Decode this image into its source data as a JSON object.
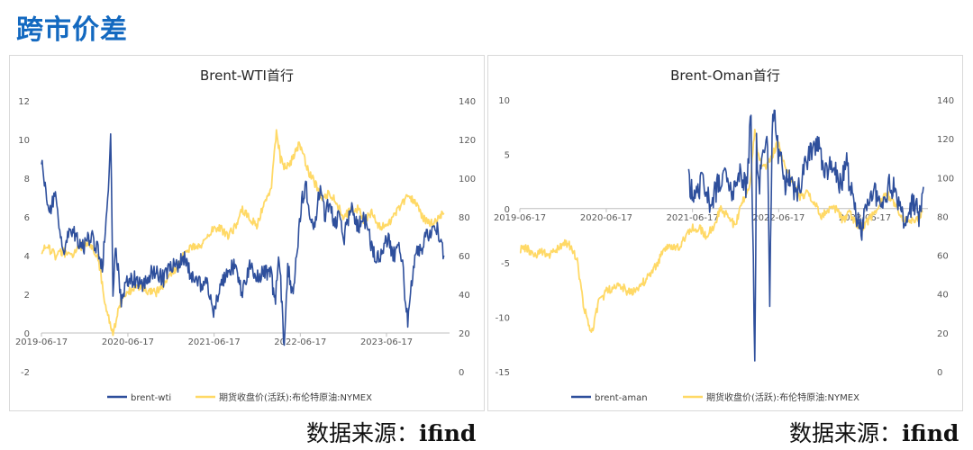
{
  "page_title": "跨市价差",
  "source_left": {
    "label": "数据来源：",
    "value": "ifind"
  },
  "source_right": {
    "label": "数据来源：",
    "value": "ifind"
  },
  "colors": {
    "spread_line": "#2e4f9c",
    "price_line": "#ffd966",
    "title": "#1369c0"
  },
  "chart_data": [
    {
      "type": "line",
      "title": "Brent-WTI首行",
      "xlabel": "",
      "ylabel": "",
      "x_ticks": [
        "2019-06-17",
        "2020-06-17",
        "2021-06-17",
        "2022-06-17",
        "2023-06-17"
      ],
      "y_left": {
        "ticks": [
          "-2",
          "0",
          "2",
          "4",
          "6",
          "8",
          "10",
          "12"
        ],
        "lim": [
          -2,
          12
        ]
      },
      "y_right": {
        "ticks": [
          "0",
          "20",
          "40",
          "60",
          "80",
          "100",
          "120",
          "140"
        ],
        "lim": [
          0,
          140
        ]
      },
      "legend_position": "bottom",
      "series": [
        {
          "name": "brent-wti",
          "axis": "left",
          "x": [
            "2019-06-17",
            "2019-07-15",
            "2019-08-15",
            "2019-09-15",
            "2019-10-15",
            "2019-11-15",
            "2019-12-15",
            "2020-01-15",
            "2020-02-15",
            "2020-03-01",
            "2020-03-20",
            "2020-04-05",
            "2020-04-15",
            "2020-04-25",
            "2020-05-10",
            "2020-05-20",
            "2020-06-10",
            "2020-07-15",
            "2020-08-15",
            "2020-09-15",
            "2020-10-15",
            "2020-11-15",
            "2020-12-15",
            "2021-01-15",
            "2021-02-15",
            "2021-03-15",
            "2021-04-15",
            "2021-05-15",
            "2021-06-15",
            "2021-07-15",
            "2021-08-15",
            "2021-09-15",
            "2021-10-15",
            "2021-11-15",
            "2021-12-15",
            "2022-01-15",
            "2022-02-15",
            "2022-03-01",
            "2022-03-20",
            "2022-04-10",
            "2022-04-25",
            "2022-05-15",
            "2022-06-01",
            "2022-06-20",
            "2022-07-10",
            "2022-07-25",
            "2022-08-15",
            "2022-09-10",
            "2022-10-01",
            "2022-10-20",
            "2022-11-10",
            "2022-12-01",
            "2022-12-20",
            "2023-01-15",
            "2023-02-15",
            "2023-03-15",
            "2023-04-15",
            "2023-05-01",
            "2023-05-15",
            "2023-05-25",
            "2023-06-10",
            "2023-06-25",
            "2023-07-15",
            "2023-08-15",
            "2023-09-15",
            "2023-10-15",
            "2023-11-15",
            "2023-12-15",
            "2024-01-15",
            "2024-02-15"
          ],
          "values": [
            9.0,
            6.3,
            7.0,
            4.0,
            5.5,
            4.8,
            4.5,
            5.0,
            4.2,
            3.5,
            6.0,
            10.2,
            2.0,
            4.5,
            3.0,
            1.5,
            2.5,
            2.8,
            2.5,
            3.0,
            3.2,
            2.8,
            3.5,
            3.6,
            3.8,
            2.8,
            2.5,
            2.6,
            1.0,
            2.5,
            3.2,
            3.5,
            2.0,
            3.5,
            2.8,
            3.3,
            3.0,
            1.5,
            4.0,
            -0.8,
            3.5,
            2.0,
            4.0,
            6.5,
            7.8,
            6.0,
            5.5,
            7.5,
            6.0,
            7.0,
            5.5,
            6.2,
            5.0,
            6.5,
            5.5,
            6.0,
            4.5,
            3.8,
            4.0,
            4.2,
            4.5,
            5.0,
            4.0,
            4.5,
            0.6,
            4.0,
            4.5,
            5.2,
            5.5,
            4.0
          ]
        },
        {
          "name": "期货收盘价(活跃):布伦特原油:NYMEX",
          "axis": "right",
          "x": [
            "2019-06-17",
            "2019-07-15",
            "2019-08-15",
            "2019-09-15",
            "2019-10-15",
            "2019-11-15",
            "2019-12-15",
            "2020-01-15",
            "2020-02-15",
            "2020-03-15",
            "2020-04-15",
            "2020-04-25",
            "2020-05-15",
            "2020-06-15",
            "2020-07-15",
            "2020-08-15",
            "2020-09-15",
            "2020-10-15",
            "2020-11-15",
            "2020-12-15",
            "2021-01-15",
            "2021-02-15",
            "2021-03-15",
            "2021-04-15",
            "2021-05-15",
            "2021-06-15",
            "2021-07-15",
            "2021-08-15",
            "2021-09-15",
            "2021-10-15",
            "2021-11-15",
            "2021-12-15",
            "2022-01-15",
            "2022-02-15",
            "2022-03-08",
            "2022-03-25",
            "2022-04-15",
            "2022-05-15",
            "2022-06-15",
            "2022-07-15",
            "2022-08-15",
            "2022-09-15",
            "2022-10-15",
            "2022-11-15",
            "2022-12-15",
            "2023-01-15",
            "2023-02-15",
            "2023-03-15",
            "2023-04-15",
            "2023-05-15",
            "2023-06-15",
            "2023-07-15",
            "2023-08-15",
            "2023-09-15",
            "2023-10-15",
            "2023-11-15",
            "2023-12-15",
            "2024-01-15",
            "2024-02-15"
          ],
          "values": [
            63,
            64,
            60,
            62,
            60,
            63,
            66,
            65,
            57,
            33,
            20,
            25,
            35,
            41,
            43,
            45,
            41,
            41,
            45,
            50,
            55,
            62,
            65,
            64,
            68,
            74,
            74,
            70,
            75,
            84,
            80,
            75,
            88,
            95,
            125,
            110,
            105,
            110,
            118,
            105,
            98,
            90,
            92,
            88,
            80,
            83,
            84,
            78,
            82,
            75,
            75,
            80,
            85,
            92,
            88,
            80,
            77,
            78,
            82
          ]
        }
      ]
    },
    {
      "type": "line",
      "title": "Brent-Oman首行",
      "xlabel": "",
      "ylabel": "",
      "x_ticks": [
        "2019-06-17",
        "2020-06-17",
        "2021-06-17",
        "2022-06-17",
        "2023-06-17"
      ],
      "y_left": {
        "ticks": [
          "-15",
          "-10",
          "-5",
          "0",
          "5",
          "10"
        ],
        "lim": [
          -15,
          10
        ]
      },
      "y_right": {
        "ticks": [
          "0",
          "20",
          "40",
          "60",
          "80",
          "100",
          "120",
          "140"
        ],
        "lim": [
          0,
          140
        ]
      },
      "legend_position": "bottom",
      "series": [
        {
          "name": "brent-aman",
          "axis": "left",
          "x": [
            "2021-06-01",
            "2021-07-01",
            "2021-08-01",
            "2021-09-01",
            "2021-10-01",
            "2021-11-01",
            "2021-12-01",
            "2022-01-01",
            "2022-02-01",
            "2022-02-20",
            "2022-03-08",
            "2022-03-15",
            "2022-03-25",
            "2022-04-15",
            "2022-05-01",
            "2022-05-10",
            "2022-05-20",
            "2022-06-01",
            "2022-06-15",
            "2022-07-01",
            "2022-07-15",
            "2022-08-01",
            "2022-08-15",
            "2022-09-01",
            "2022-10-01",
            "2022-11-01",
            "2022-12-01",
            "2023-01-01",
            "2023-02-01",
            "2023-03-01",
            "2023-04-01",
            "2023-05-01",
            "2023-06-01",
            "2023-07-01",
            "2023-08-01",
            "2023-09-01",
            "2023-10-01",
            "2023-11-01",
            "2023-12-01",
            "2024-01-01",
            "2024-02-01",
            "2024-02-20"
          ],
          "values": [
            2.5,
            1.0,
            3.0,
            0.5,
            2.0,
            3.0,
            1.5,
            3.5,
            2.0,
            8.5,
            -15.0,
            6.0,
            2.0,
            5.0,
            6.5,
            -8.0,
            7.0,
            9.0,
            5.0,
            4.0,
            2.0,
            3.5,
            2.0,
            1.0,
            3.5,
            5.0,
            6.0,
            3.0,
            4.5,
            2.0,
            4.0,
            0.0,
            -2.0,
            0.5,
            1.5,
            0.0,
            2.5,
            1.0,
            -1.0,
            0.5,
            -0.5,
            2.0
          ]
        },
        {
          "name": "期货收盘价(活跃):布伦特原油:NYMEX",
          "axis": "right",
          "x": [
            "2019-06-17",
            "2019-07-15",
            "2019-08-15",
            "2019-09-15",
            "2019-10-15",
            "2019-11-15",
            "2019-12-15",
            "2020-01-15",
            "2020-02-15",
            "2020-03-15",
            "2020-04-15",
            "2020-04-25",
            "2020-05-15",
            "2020-06-15",
            "2020-07-15",
            "2020-08-15",
            "2020-09-15",
            "2020-10-15",
            "2020-11-15",
            "2020-12-15",
            "2021-01-15",
            "2021-02-15",
            "2021-03-15",
            "2021-04-15",
            "2021-05-15",
            "2021-06-15",
            "2021-07-15",
            "2021-08-15",
            "2021-09-15",
            "2021-10-15",
            "2021-11-15",
            "2021-12-15",
            "2022-01-15",
            "2022-02-15",
            "2022-03-08",
            "2022-03-25",
            "2022-04-15",
            "2022-05-15",
            "2022-06-15",
            "2022-07-15",
            "2022-08-15",
            "2022-09-15",
            "2022-10-15",
            "2022-11-15",
            "2022-12-15",
            "2023-01-15",
            "2023-02-15",
            "2023-03-15",
            "2023-04-15",
            "2023-05-15",
            "2023-06-15",
            "2023-07-15",
            "2023-08-15",
            "2023-09-15",
            "2023-10-15",
            "2023-11-15",
            "2023-12-15",
            "2024-01-15",
            "2024-02-15"
          ],
          "values": [
            63,
            64,
            60,
            62,
            60,
            63,
            66,
            65,
            57,
            33,
            20,
            25,
            35,
            41,
            43,
            45,
            41,
            41,
            45,
            50,
            55,
            62,
            65,
            64,
            68,
            74,
            74,
            70,
            75,
            84,
            80,
            75,
            88,
            95,
            125,
            110,
            105,
            110,
            118,
            105,
            98,
            90,
            92,
            88,
            80,
            83,
            84,
            78,
            82,
            75,
            75,
            80,
            85,
            92,
            88,
            80,
            77,
            78,
            82
          ]
        }
      ]
    }
  ]
}
